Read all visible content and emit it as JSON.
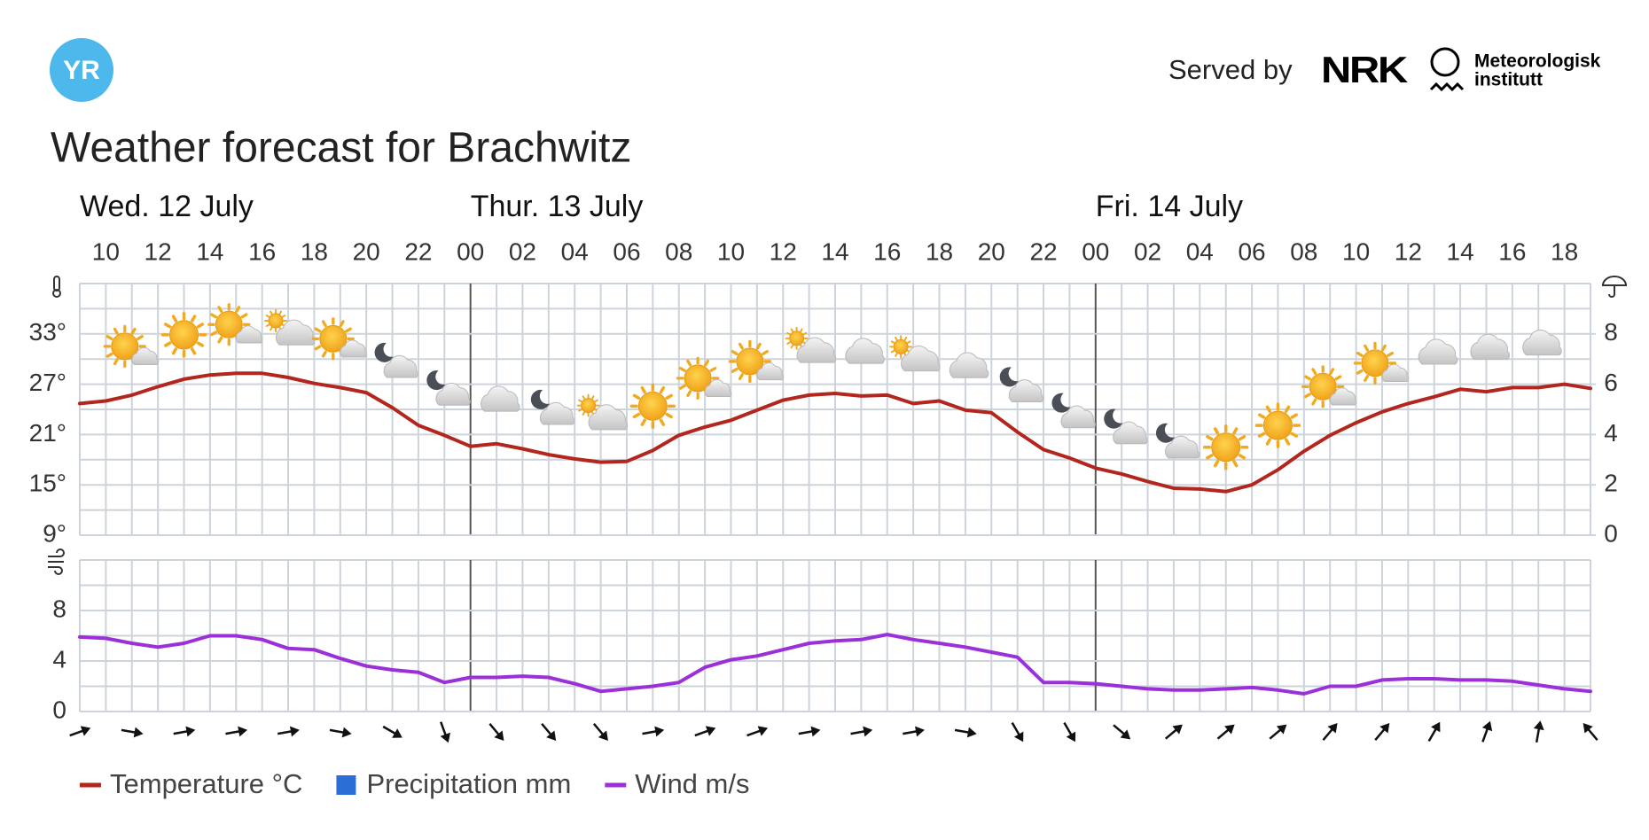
{
  "header": {
    "logo": "YR",
    "served_by": "Served by",
    "nrk": "NRK",
    "met_line1": "Meteorologisk",
    "met_line2": "institutt",
    "title": "Weather forecast for Brachwitz"
  },
  "chart_data": [
    {
      "type": "line",
      "days": [
        "Wed. 12 July",
        "Thur. 13 July",
        "Fri. 14 July"
      ],
      "categories": [
        null,
        "10",
        null,
        "12",
        null,
        "14",
        null,
        "16",
        null,
        "18",
        null,
        "20",
        null,
        "22",
        null,
        "00",
        null,
        "02",
        null,
        "04",
        null,
        "06",
        null,
        "08",
        null,
        "10",
        null,
        "12",
        null,
        "14",
        null,
        "16",
        null,
        "18",
        null,
        "20",
        null,
        "22",
        null,
        "00",
        null,
        "02",
        null,
        "04",
        null,
        "06",
        null,
        "08",
        null,
        "10",
        null,
        "12",
        null,
        "14",
        null,
        "16",
        null,
        "18",
        null
      ],
      "series": [
        {
          "name": "Temperature °C",
          "color": "#b3261e",
          "type": "line",
          "values": [
            24.7,
            25.0,
            25.7,
            26.7,
            27.6,
            28.1,
            28.3,
            28.3,
            27.8,
            27.1,
            26.6,
            26.0,
            24.2,
            22.1,
            20.9,
            19.6,
            19.9,
            19.3,
            18.6,
            18.1,
            17.7,
            17.8,
            19.1,
            20.9,
            21.9,
            22.7,
            23.9,
            25.1,
            25.7,
            25.9,
            25.6,
            25.7,
            24.7,
            25.0,
            23.9,
            23.6,
            21.3,
            19.2,
            18.2,
            17.0,
            16.3,
            15.4,
            14.6,
            14.5,
            14.2,
            15.0,
            16.8,
            19.0,
            20.9,
            22.4,
            23.7,
            24.7,
            25.5,
            26.4,
            26.1,
            26.6,
            26.6,
            27.0,
            26.5
          ]
        },
        {
          "name": "Precipitation mm",
          "color": "#2b6fd6",
          "type": "bar",
          "axis": "y2",
          "values": [
            0,
            0,
            0,
            0,
            0,
            0,
            0,
            0,
            0,
            0,
            0,
            0,
            0,
            0,
            0,
            0,
            0,
            0,
            0,
            0,
            0,
            0,
            0,
            0,
            0,
            0,
            0,
            0,
            0,
            0,
            0,
            0,
            0,
            0,
            0,
            0,
            0,
            0,
            0,
            0,
            0,
            0,
            0,
            0,
            0,
            0,
            0,
            0,
            0,
            0,
            0,
            0,
            0,
            0,
            0,
            0,
            0,
            0,
            0
          ]
        }
      ],
      "ylim": [
        9,
        39
      ],
      "yticks": [
        {
          "value": 9,
          "label": "9°"
        },
        {
          "value": 15,
          "label": "15°"
        },
        {
          "value": 21,
          "label": "21°"
        },
        {
          "value": 27,
          "label": "27°"
        },
        {
          "value": 33,
          "label": "33°"
        }
      ],
      "y2lim": [
        0,
        10
      ],
      "y2ticks": [
        0,
        2,
        4,
        6,
        8
      ],
      "grid": true
    },
    {
      "type": "line",
      "series": [
        {
          "name": "Wind m/s",
          "color": "#9b30d9",
          "type": "line",
          "values": [
            5.9,
            5.8,
            5.4,
            5.1,
            5.4,
            6.0,
            6.0,
            5.7,
            5.0,
            4.9,
            4.2,
            3.6,
            3.3,
            3.1,
            2.3,
            2.7,
            2.7,
            2.8,
            2.7,
            2.2,
            1.6,
            1.8,
            2.0,
            2.3,
            3.5,
            4.1,
            4.4,
            4.9,
            5.4,
            5.6,
            5.7,
            6.1,
            5.7,
            5.4,
            5.1,
            4.7,
            4.3,
            2.3,
            2.3,
            2.2,
            2.0,
            1.8,
            1.7,
            1.7,
            1.8,
            1.9,
            1.7,
            1.4,
            2.0,
            2.0,
            2.5,
            2.6,
            2.6,
            2.5,
            2.5,
            2.4,
            2.1,
            1.8,
            1.6
          ]
        }
      ],
      "wind_direction": [
        70,
        null,
        100,
        null,
        80,
        null,
        80,
        null,
        80,
        null,
        100,
        null,
        120,
        null,
        160,
        null,
        140,
        null,
        140,
        null,
        140,
        null,
        80,
        null,
        70,
        null,
        70,
        null,
        80,
        null,
        80,
        null,
        80,
        null,
        100,
        null,
        150,
        null,
        150,
        null,
        130,
        null,
        50,
        null,
        50,
        null,
        50,
        null,
        40,
        null,
        40,
        null,
        30,
        null,
        20,
        null,
        10,
        null,
        320
      ],
      "ylim": [
        0,
        12
      ],
      "yticks": [
        0,
        4,
        8
      ],
      "grid": true
    }
  ]
}
